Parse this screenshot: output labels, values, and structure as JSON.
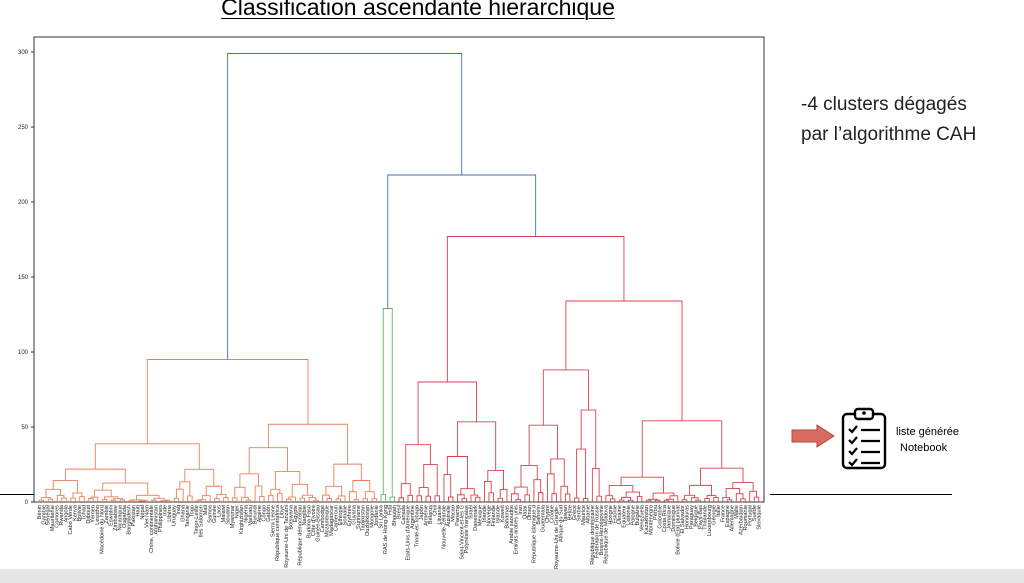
{
  "slide": {
    "title": "Classification ascendante hierarchique",
    "note_line1": "-4 clusters dégagés",
    "note_line2": "par l’algorithme CAH",
    "link_line1": "liste générée",
    "link_line2": "Notebook"
  },
  "icons": {
    "arrow": "right-arrow-icon",
    "clipboard": "clipboard-checklist-icon"
  },
  "colors": {
    "cluster_orange": "#e8805a",
    "cluster_green": "#6ab36a",
    "cluster_red": "#d8414f",
    "link_blue": "#4a6fb3",
    "arrow_fill": "#d96b5f",
    "arrow_stroke": "#b04a40"
  },
  "chart_data": {
    "type": "dendrogram",
    "title": "Classification ascendante hierarchique",
    "ylim": [
      0,
      310
    ],
    "yticks": [
      0,
      50,
      100,
      150,
      200,
      250,
      300
    ],
    "n_leaves": 161,
    "clusters": [
      {
        "name": "cluster-orange",
        "color": "orange",
        "leaf_start": 0,
        "leaf_end": 75,
        "top_height": 95
      },
      {
        "name": "cluster-green",
        "color": "green",
        "leaf_start": 76,
        "leaf_end": 79,
        "top_height": 129
      },
      {
        "name": "cluster-red-a",
        "color": "red",
        "leaf_start": 80,
        "leaf_end": 104,
        "top_height": 80
      },
      {
        "name": "cluster-red-b",
        "color": "red",
        "leaf_start": 105,
        "leaf_end": 160,
        "top_height": 134
      }
    ],
    "merges": {
      "red_ab": 177,
      "green_red": 218,
      "root": 299
    },
    "leaf_labels": [
      "Bénin",
      "Gambie",
      "Sénégal",
      "Mauritanie",
      "Comores",
      "Rwanda",
      "Angola",
      "Cabo Verde",
      "Kenya",
      "Bolivie",
      "Tchad",
      "Djibouti",
      "Yémen",
      "Lesotho",
      "Macédoine du Nord",
      "Zambie",
      "Eswatini",
      "Zimbabwe",
      "Nicaragua",
      "Ouganda",
      "Bangladesh",
      "Pakistan",
      "Haïti",
      "Népal",
      "Viet Nam",
      "Chine, continentale",
      "Afghanistan",
      "Philippines",
      "Inde",
      "Libéria",
      "Uruguay",
      "Iraq",
      "Ghana",
      "Tanzanie",
      "Togo",
      "Timor-Leste",
      "Iles Salomon",
      "Mali",
      "Samoa",
      "Guinée",
      "Laos",
      "Malawi",
      "Soudan",
      "Myanmar",
      "Niger",
      "Kirghizistan",
      "Nigéria",
      "Vanuatu",
      "Burundi",
      "Algérie",
      "Congo",
      "Gabon",
      "Sierra Leone",
      "République centrafricaine",
      "Libye",
      "Royaume-Uni de Tanzanie",
      "Botswana",
      "Egypte",
      "République démocratique du Congo",
      "Namibie",
      "Burkina Faso",
      "Côte d'Ivoire",
      "Guinée-Bissau",
      "Cambodge",
      "Mozambique",
      "Madagascar",
      "Cameroun",
      "Ethiopie",
      "Somalie",
      "Erythrée",
      "Guyana",
      "Suriname",
      "Tadjikistan",
      "Ouzbékistan",
      "Mongolie",
      "Jordanie",
      "Sri Lanka",
      "RAS de Hong-Kong",
      "Fidji",
      "Bhoutan",
      "Brésil",
      "Canada",
      "Etats-Unis d'Amérique",
      "Argentine",
      "Trinité-et-Tobago",
      "Japon",
      "Arménie",
      "Bélarus",
      "Chili",
      "Lituanie",
      "Nouvelle-Zélande",
      "Australie",
      "Macao",
      "Panama",
      "Saint-Vincent-et-les Grenadines",
      "Polynésie française",
      "Israël",
      "Danemark",
      "Mexique",
      "Irlande",
      "Norvège",
      "Finlande",
      "Islande",
      "Koweït",
      "Bahamas",
      "Arabie saoudite",
      "Emirats arabes unis",
      "Iran",
      "Qatar",
      "Oman",
      "République islamique d'Iran",
      "Bahreïn",
      "Guatemala",
      "Chypre",
      "Croatie",
      "Royaume-Uni de Grande-Bretagne et d'Irlande du Nord",
      "Afrique du Sud",
      "Taiwan",
      "Belize",
      "Grèce",
      "Serbie",
      "Maurice",
      "Albanie",
      "République dominicaine",
      "Fédération de Russie",
      "Bosnie-Herzégovine",
      "République de Moldova",
      "Hongrie",
      "Estonie",
      "Ukraine",
      "Equateur",
      "Lettonie",
      "Pologne",
      "Bulgarie",
      "Venezuela",
      "Kazakhstan",
      "Monténégro",
      "Pérou",
      "Colombie",
      "Costa Rica",
      "Jamaïque",
      "Dominique",
      "Bolivie (Etat plurinational)",
      "El Salvador",
      "Honduras",
      "Paraguay",
      "Belgique",
      "Pays-Bas",
      "Thaïlande",
      "Luxembourg",
      "Géorgie",
      "Italie",
      "France",
      "Espagne",
      "Allemagne",
      "Malte",
      "Azerbaïdjan",
      "Roumanie",
      "Portugal",
      "Suède",
      "Slovaquie"
    ]
  }
}
